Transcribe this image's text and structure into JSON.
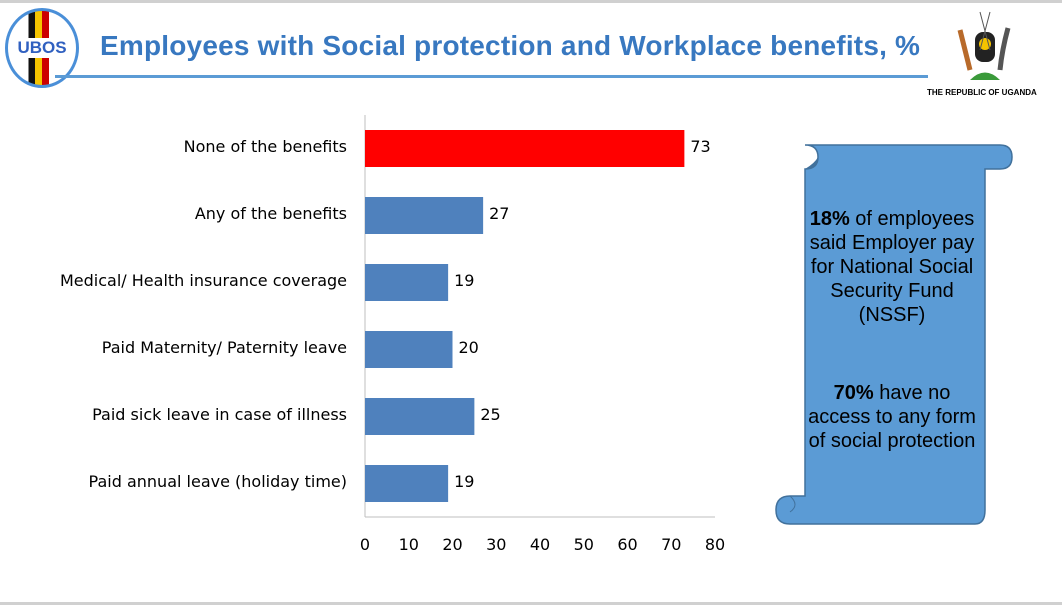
{
  "header": {
    "title": "Employees with Social protection and Workplace benefits, %",
    "logo_text": "UBOS",
    "emblem_caption": "THE REPUBLIC OF UGANDA"
  },
  "chart_data": {
    "type": "bar",
    "orientation": "horizontal",
    "categories": [
      "None of the benefits",
      "Any of the benefits",
      "Medical/ Health insurance coverage",
      "Paid Maternity/ Paternity leave",
      "Paid sick leave in case of illness",
      "Paid annual leave (holiday time)"
    ],
    "values": [
      73,
      27,
      19,
      20,
      25,
      19
    ],
    "colors": [
      "#ff0000",
      "#4f81bd",
      "#4f81bd",
      "#4f81bd",
      "#4f81bd",
      "#4f81bd"
    ],
    "xlim": [
      0,
      80
    ],
    "xticks": [
      "0",
      "10",
      "20",
      "30",
      "40",
      "50",
      "60",
      "70",
      "80"
    ],
    "grid": false
  },
  "callout": {
    "bg": "#5b9bd5",
    "p1_bold": "18%",
    "p1_rest": " of employees said Employer pay for  National Social Security Fund (NSSF)",
    "p2_bold": "70%",
    "p2_rest": " have no access to any form of social protection"
  }
}
